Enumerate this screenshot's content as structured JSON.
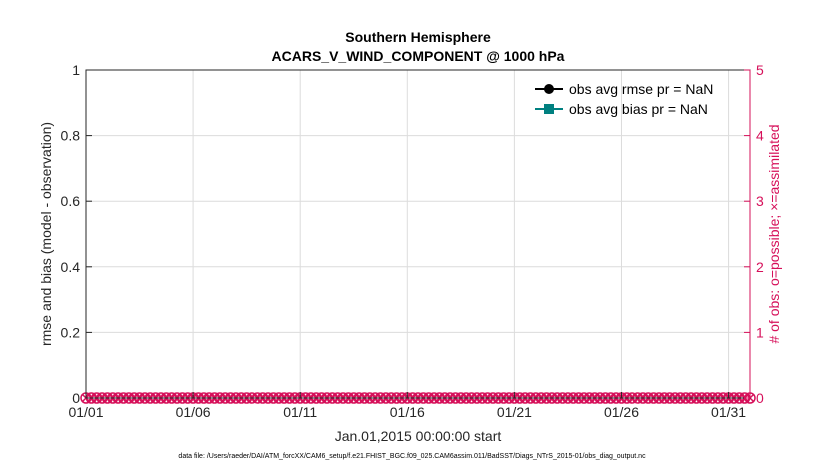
{
  "chart_data": {
    "type": "line",
    "title": [
      "Southern Hemisphere",
      "ACARS_V_WIND_COMPONENT @ 1000 hPa"
    ],
    "xlabel": "Jan.01,2015 00:00:00 start",
    "ylabel": "rmse and bias (model - observation)",
    "ylabel_right": "# of obs: o=possible; ×=assimilated",
    "footnote": "data file: /Users/raeder/DAI/ATM_forcXX/CAM6_setup/f.e21.FHIST_BGC.f09_025.CAM6assim.011/BadSST/Diags_NTrS_2015-01/obs_diag_output.nc",
    "x_range": [
      "2015-01-01 00:00",
      "2015-02-01 00:00"
    ],
    "x_ticks": [
      "01/01",
      "01/06",
      "01/11",
      "01/16",
      "01/21",
      "01/26",
      "01/31"
    ],
    "ylim": [
      0,
      1
    ],
    "y_ticks": [
      "0",
      "0.2",
      "0.4",
      "0.6",
      "0.8",
      "1"
    ],
    "ylim_right": [
      0,
      5
    ],
    "y_ticks_right": [
      "0",
      "1",
      "2",
      "3",
      "4",
      "5"
    ],
    "grid": true,
    "legend_placement": "top-right",
    "series": [
      {
        "name": "obs avg rmse pr = NaN",
        "color": "#000000",
        "marker": "circle",
        "values": []
      },
      {
        "name": "obs avg bias pr = NaN",
        "color": "#008080",
        "marker": "square",
        "values": []
      }
    ],
    "obs_counts": {
      "color": "#D6105A",
      "interval_hours": 6,
      "possible_value": 0,
      "assimilated_value": 0
    }
  }
}
